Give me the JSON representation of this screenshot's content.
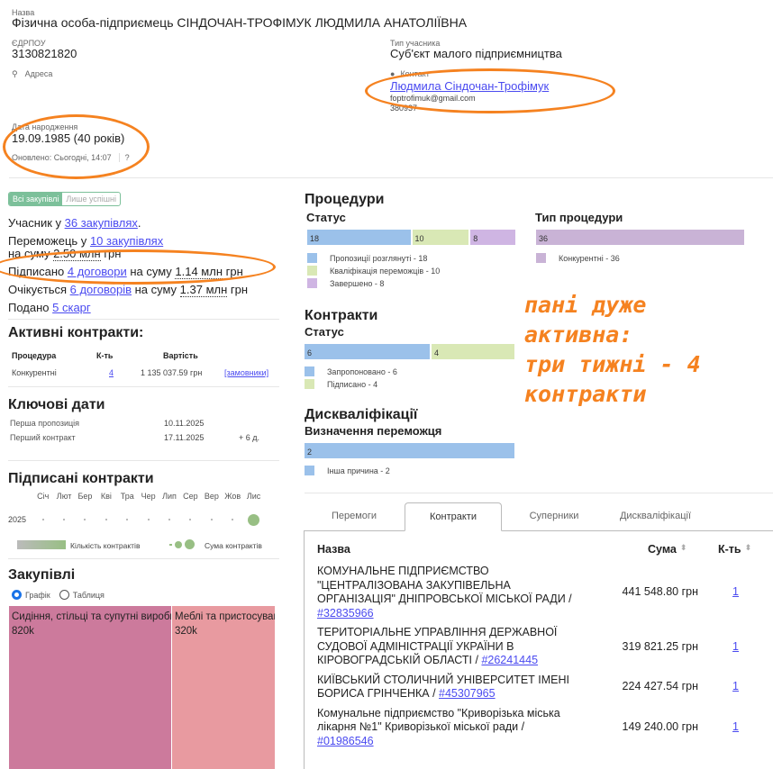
{
  "header": {
    "name_label": "Назва",
    "name": "Фізична особа-підприємець СІНДОЧАН-ТРОФІМУК ЛЮДМИЛА АНАТОЛІЇВНА",
    "edrpou_label": "ЄДРПОУ",
    "edrpou": "3130821820",
    "address_label": "Адреса",
    "type_label": "Тип учасника",
    "type": "Суб'єкт малого підприємництва",
    "contact_label": "Контакт",
    "contact_name": "Людмила Сіндочан-Трофімук",
    "contact_email": "foptrofimuk@gmail.com",
    "contact_phone": "380937",
    "birth_label": "Дата народження",
    "birth": "19.09.1985 (40 років)",
    "updated": "Оновлено: Сьогодні, 14:07"
  },
  "filter": {
    "all": "Всі закупівлі",
    "success": "Лише успішні"
  },
  "summary": {
    "p1": "Учасник у ",
    "p1_link": "36 закупівлях",
    "p1_end": ".",
    "p2": "Переможець у ",
    "p2_link": "10 закупівлях",
    "p2b": "на суму ",
    "p2_sum": "2.50 млн",
    "p2_unit": " грн",
    "p3": "Підписано ",
    "p3_link": "4 договори",
    "p3b": " на суму ",
    "p3_sum": "1.14 млн",
    "p3_unit": " грн",
    "p4": "Очікується ",
    "p4_link": "6 договорів",
    "p4b": " на суму ",
    "p4_sum": "1.37 млн",
    "p4_unit": " грн",
    "p5": "Подано ",
    "p5_link": "5 скарг"
  },
  "active": {
    "title": "Активні контракти:",
    "headers": [
      "Процедура",
      "К-ть",
      "Вартість"
    ],
    "row": {
      "proc": "Конкурентні",
      "count": "4",
      "value": "1 135 037.59 грн",
      "link": "[замовники]"
    }
  },
  "dates": {
    "title": "Ключові дати",
    "rows": [
      {
        "label": "Перша пропозиція",
        "date": "10.11.2025",
        "diff": ""
      },
      {
        "label": "Перший контракт",
        "date": "17.11.2025",
        "diff": "+ 6 д."
      }
    ]
  },
  "signed": {
    "title": "Підписані контракти",
    "months": [
      "Січ",
      "Лют",
      "Бер",
      "Кві",
      "Тра",
      "Чер",
      "Лип",
      "Сер",
      "Вер",
      "Жов",
      "Лис"
    ],
    "year": "2025",
    "legend_count": "Кількість контрактів",
    "legend_sum": "Сума контрактів"
  },
  "purchases": {
    "title": "Закупівлі",
    "radio_chart": "Графік",
    "radio_table": "Таблиця",
    "tiles": [
      {
        "label": "Сидіння, стільці та супутні вироби",
        "value": "820k",
        "color": "#cc7a9c"
      },
      {
        "label": "Меблі та пристосування",
        "value": "320k",
        "color": "#e89aa0"
      }
    ]
  },
  "procedures": {
    "title": "Процедури",
    "status_title": "Статус",
    "status": [
      {
        "label": "Пропозиції розглянуті - 18",
        "value": 18,
        "color": "#9bc1ea"
      },
      {
        "label": "Кваліфікація переможців - 10",
        "value": 10,
        "color": "#d9e8b5"
      },
      {
        "label": "Завершено - 8",
        "value": 8,
        "color": "#cfb5e3"
      }
    ],
    "type_title": "Тип процедури",
    "types": [
      {
        "label": "Конкурентні - 36",
        "value": 36,
        "color": "#c9b3d6"
      }
    ]
  },
  "contracts": {
    "title": "Контракти",
    "status_title": "Статус",
    "status": [
      {
        "label": "Запропоновано - 6",
        "value": 6,
        "color": "#9bc1ea"
      },
      {
        "label": "Підписано - 4",
        "value": 4,
        "color": "#d9e8b5"
      }
    ]
  },
  "disq": {
    "title": "Дискваліфікації",
    "sub": "Визначення переможця",
    "items": [
      {
        "label": "Інша причина - 2",
        "value": 2,
        "color": "#9bc1ea"
      }
    ]
  },
  "tabs": [
    "Перемоги",
    "Контракти",
    "Суперники",
    "Дискваліфікації"
  ],
  "table": {
    "headers": [
      "Назва",
      "Сума",
      "К-ть"
    ],
    "rows": [
      {
        "name": "КОМУНАЛЬНЕ ПІДПРИЄМСТВО \"ЦЕНТРАЛІЗОВАНА ЗАКУПІВЕЛЬНА ОРГАНІЗАЦІЯ\" ДНІПРОВСЬКОЇ МІСЬКОЇ РАДИ / ",
        "code": "#32835966",
        "sum": "441 548.80 грн",
        "count": "1"
      },
      {
        "name": "ТЕРИТОРІАЛЬНЕ УПРАВЛІННЯ ДЕРЖАВНОЇ СУДОВОЇ АДМІНІСТРАЦІЇ УКРАЇНИ В КІРОВОГРАДСЬКІЙ ОБЛАСТІ / ",
        "code": "#26241445",
        "sum": "319 821.25 грн",
        "count": "1"
      },
      {
        "name": "КИЇВСЬКИЙ СТОЛИЧНИЙ УНІВЕРСИТЕТ ІМЕНІ БОРИСА ГРІНЧЕНКА / ",
        "code": "#45307965",
        "sum": "224 427.54 грн",
        "count": "1"
      },
      {
        "name": "Комунальне підприємство \"Криворізька міська лікарня №1\" Криворізької міської ради / ",
        "code": "#01986546",
        "sum": "149 240.00 грн",
        "count": "1"
      }
    ]
  },
  "annotation": "пані дуже\nактивна:\nтри тижні - 4\nконтракти"
}
